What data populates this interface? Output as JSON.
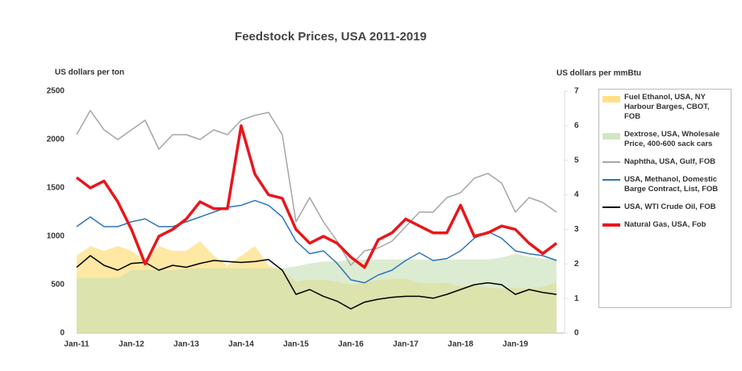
{
  "chart_data": {
    "type": "line",
    "title": "Feedstock Prices, USA 2011-2019",
    "y_label": "US dollars per ton",
    "y2_label": "US dollars per mmBtu",
    "categories": [
      "Jan-11",
      null,
      null,
      null,
      "Jan-12",
      null,
      null,
      null,
      "Jan-13",
      null,
      null,
      null,
      "Jan-14",
      null,
      null,
      null,
      "Jan-15",
      null,
      null,
      null,
      "Jan-16",
      null,
      null,
      null,
      "Jan-17",
      null,
      null,
      null,
      "Jan-18",
      null,
      null,
      null,
      "Jan-19",
      null,
      null,
      null
    ],
    "ylim": [
      0,
      2500
    ],
    "yticks": [
      0,
      500,
      1000,
      1500,
      2000,
      2500
    ],
    "y2lim": [
      0,
      7
    ],
    "y2ticks": [
      0,
      1,
      2,
      3,
      4,
      5,
      6,
      7
    ],
    "series": [
      {
        "name": "Fuel Ethanol, USA, NY Harbour Barges, CBOT, FOB",
        "color": "#ffd966",
        "kind": "area",
        "values": [
          800,
          900,
          850,
          900,
          850,
          750,
          900,
          850,
          850,
          950,
          800,
          700,
          800,
          900,
          700,
          650,
          530,
          550,
          550,
          530,
          500,
          520,
          550,
          560,
          560,
          520,
          510,
          520,
          480,
          500,
          470,
          460,
          470,
          460,
          480,
          520
        ]
      },
      {
        "name": "Dextrose, USA, Wholesale Price, 400-600 sack cars",
        "color": "#c5e0b4",
        "kind": "area",
        "values": [
          570,
          570,
          570,
          570,
          650,
          650,
          650,
          650,
          670,
          670,
          670,
          670,
          670,
          670,
          670,
          670,
          690,
          720,
          740,
          740,
          760,
          760,
          760,
          760,
          760,
          760,
          760,
          760,
          760,
          760,
          760,
          780,
          820,
          790,
          770,
          770
        ]
      },
      {
        "name": "Naphtha, USA, Gulf, FOB",
        "color": "#a6a6a6",
        "kind": "line",
        "width": 1.5,
        "values": [
          2050,
          2300,
          2100,
          2000,
          2100,
          2200,
          1900,
          2050,
          2050,
          2000,
          2100,
          2050,
          2200,
          2250,
          2280,
          2050,
          1150,
          1400,
          1150,
          950,
          700,
          850,
          880,
          950,
          1100,
          1250,
          1250,
          1400,
          1450,
          1600,
          1650,
          1550,
          1250,
          1400,
          1350,
          1250
        ]
      },
      {
        "name": "USA, Methanol, Domestic Barge Contract, List, FOB",
        "color": "#2e75b6",
        "kind": "line",
        "width": 1.5,
        "values": [
          1100,
          1200,
          1100,
          1100,
          1150,
          1180,
          1100,
          1100,
          1150,
          1200,
          1250,
          1300,
          1320,
          1370,
          1320,
          1200,
          950,
          820,
          850,
          720,
          550,
          520,
          600,
          650,
          750,
          830,
          750,
          770,
          850,
          980,
          1050,
          980,
          850,
          820,
          800,
          750
        ]
      },
      {
        "name": "USA, WTI Crude Oil, FOB",
        "color": "#000000",
        "kind": "line",
        "width": 1.5,
        "values": [
          680,
          800,
          700,
          650,
          720,
          730,
          650,
          700,
          680,
          720,
          750,
          740,
          730,
          740,
          760,
          650,
          400,
          450,
          380,
          330,
          250,
          320,
          350,
          370,
          380,
          380,
          360,
          400,
          450,
          500,
          520,
          500,
          400,
          450,
          420,
          400
        ]
      },
      {
        "name": "Natural Gas, USA, Fob",
        "color": "#e8161b",
        "kind": "line",
        "width": 3.5,
        "axis": "y2",
        "values": [
          4.5,
          4.2,
          4.4,
          3.8,
          3.0,
          2.0,
          2.8,
          3.0,
          3.3,
          3.8,
          3.6,
          3.6,
          6.0,
          4.6,
          4.0,
          3.9,
          3.0,
          2.6,
          2.8,
          2.6,
          2.2,
          1.9,
          2.7,
          2.9,
          3.3,
          3.1,
          2.9,
          2.9,
          3.7,
          2.8,
          2.9,
          3.1,
          3.0,
          2.6,
          2.3,
          2.6
        ]
      }
    ]
  }
}
